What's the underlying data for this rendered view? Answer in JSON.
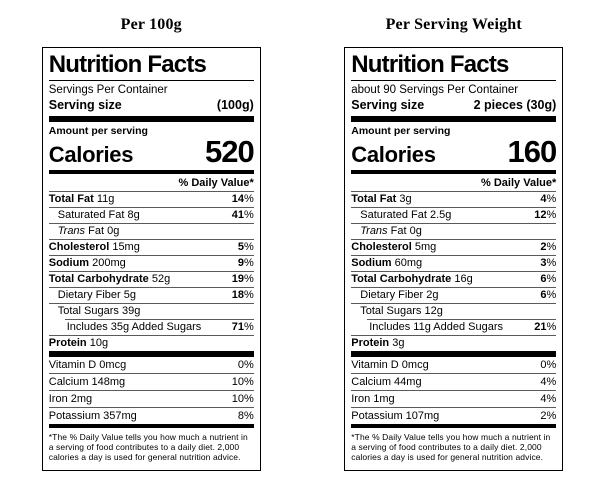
{
  "colors": {
    "text": "#000000",
    "border": "#000000",
    "hairline": "#5a5a5a",
    "background": "#ffffff"
  },
  "columns": [
    {
      "heading": "Per 100g",
      "label": {
        "title": "Nutrition Facts",
        "servings_line": "Servings Per Container",
        "serving_size_label": "Serving size",
        "serving_size_value": "(100g)",
        "amount_per_serving_label": "Amount per serving",
        "calories_label": "Calories",
        "calories_value": "520",
        "daily_value_header": "% Daily Value*",
        "nutrients": [
          {
            "name": "Total Fat",
            "value": "11g",
            "dv": "14%",
            "bold": true,
            "indent": 0
          },
          {
            "name": "Saturated Fat",
            "value": "8g",
            "dv": "41%",
            "bold": false,
            "indent": 1
          },
          {
            "name": "Trans Fat",
            "value": "0g",
            "dv": "",
            "bold": false,
            "indent": 1,
            "italic_first": true
          },
          {
            "name": "Cholesterol",
            "value": "15mg",
            "dv": "5%",
            "bold": true,
            "indent": 0
          },
          {
            "name": "Sodium",
            "value": "200mg",
            "dv": "9%",
            "bold": true,
            "indent": 0
          },
          {
            "name": "Total Carbohydrate",
            "value": "52g",
            "dv": "19%",
            "bold": true,
            "indent": 0
          },
          {
            "name": "Dietary Fiber",
            "value": "5g",
            "dv": "18%",
            "bold": false,
            "indent": 1
          },
          {
            "name": "Total Sugars",
            "value": "39g",
            "dv": "",
            "bold": false,
            "indent": 1
          },
          {
            "name": "Includes 35g Added Sugars",
            "value": "",
            "dv": "71%",
            "bold": false,
            "indent": 2,
            "sep_indent": true
          },
          {
            "name": "Protein",
            "value": "10g",
            "dv": "",
            "bold": true,
            "indent": 0
          }
        ],
        "vitamins": [
          {
            "name": "Vitamin D",
            "value": "0mcg",
            "dv": "0%"
          },
          {
            "name": "Calcium",
            "value": "148mg",
            "dv": "10%"
          },
          {
            "name": "Iron",
            "value": "2mg",
            "dv": "10%"
          },
          {
            "name": "Potassium",
            "value": "357mg",
            "dv": "8%"
          }
        ],
        "footnote": "*The % Daily Value tells you how much a nutrient in a serving of food contributes to a daily diet. 2,000 calories a day is used for general nutrition advice."
      }
    },
    {
      "heading": "Per Serving Weight",
      "label": {
        "title": "Nutrition Facts",
        "servings_line": "about 90 Servings Per Container",
        "serving_size_label": "Serving size",
        "serving_size_value": "2 pieces (30g)",
        "amount_per_serving_label": "Amount per serving",
        "calories_label": "Calories",
        "calories_value": "160",
        "daily_value_header": "% Daily Value*",
        "nutrients": [
          {
            "name": "Total Fat",
            "value": "3g",
            "dv": "4%",
            "bold": true,
            "indent": 0
          },
          {
            "name": "Saturated Fat",
            "value": "2.5g",
            "dv": "12%",
            "bold": false,
            "indent": 1
          },
          {
            "name": "Trans Fat",
            "value": "0g",
            "dv": "",
            "bold": false,
            "indent": 1,
            "italic_first": true
          },
          {
            "name": "Cholesterol",
            "value": "5mg",
            "dv": "2%",
            "bold": true,
            "indent": 0
          },
          {
            "name": "Sodium",
            "value": "60mg",
            "dv": "3%",
            "bold": true,
            "indent": 0
          },
          {
            "name": "Total Carbohydrate",
            "value": "16g",
            "dv": "6%",
            "bold": true,
            "indent": 0
          },
          {
            "name": "Dietary Fiber",
            "value": "2g",
            "dv": "6%",
            "bold": false,
            "indent": 1
          },
          {
            "name": "Total Sugars",
            "value": "12g",
            "dv": "",
            "bold": false,
            "indent": 1
          },
          {
            "name": "Includes 11g Added Sugars",
            "value": "",
            "dv": "21%",
            "bold": false,
            "indent": 2,
            "sep_indent": true
          },
          {
            "name": "Protein",
            "value": "3g",
            "dv": "",
            "bold": true,
            "indent": 0
          }
        ],
        "vitamins": [
          {
            "name": "Vitamin D",
            "value": "0mcg",
            "dv": "0%"
          },
          {
            "name": "Calcium",
            "value": "44mg",
            "dv": "4%"
          },
          {
            "name": "Iron",
            "value": "1mg",
            "dv": "4%"
          },
          {
            "name": "Potassium",
            "value": "107mg",
            "dv": "2%"
          }
        ],
        "footnote": "*The % Daily Value tells you how much a nutrient in a serving of food contributes to a daily diet. 2,000 calories a day is used for general nutrition advice."
      }
    }
  ]
}
